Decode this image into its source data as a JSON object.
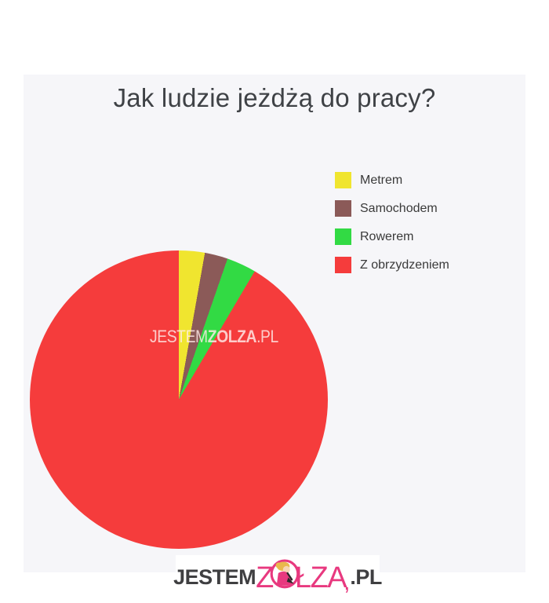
{
  "page": {
    "background": "#ffffff",
    "panel_bg": "#f6f6f9"
  },
  "chart_data": {
    "type": "pie",
    "title": "Jak ludzie jeżdżą do pracy?",
    "title_color": "#3f4246",
    "labels": [
      "Metrem",
      "Samochodem",
      "Rowerem",
      "Z obrzydzeniem"
    ],
    "values": [
      2.8,
      2.5,
      3.2,
      91.5
    ],
    "colors": [
      "#f0e52f",
      "#8b5a58",
      "#32da44",
      "#f53c3c"
    ],
    "start_angle_deg": 0,
    "direction": "clockwise",
    "legend_position": "right",
    "data_labels_shown": false
  },
  "watermark_center": {
    "part_thin": "JESTEM",
    "part_bold": "ZOLZA",
    "part_suffix": ".PL"
  },
  "footer_logo": {
    "prefix": "JESTEM",
    "z": "Z",
    "o": "O",
    "lza": "ŁZA",
    "comma": ",",
    "suffix": ".PL",
    "pink": "#e8397f",
    "dark": "#3f3f41",
    "icon": "zolza-mascot-icon"
  }
}
